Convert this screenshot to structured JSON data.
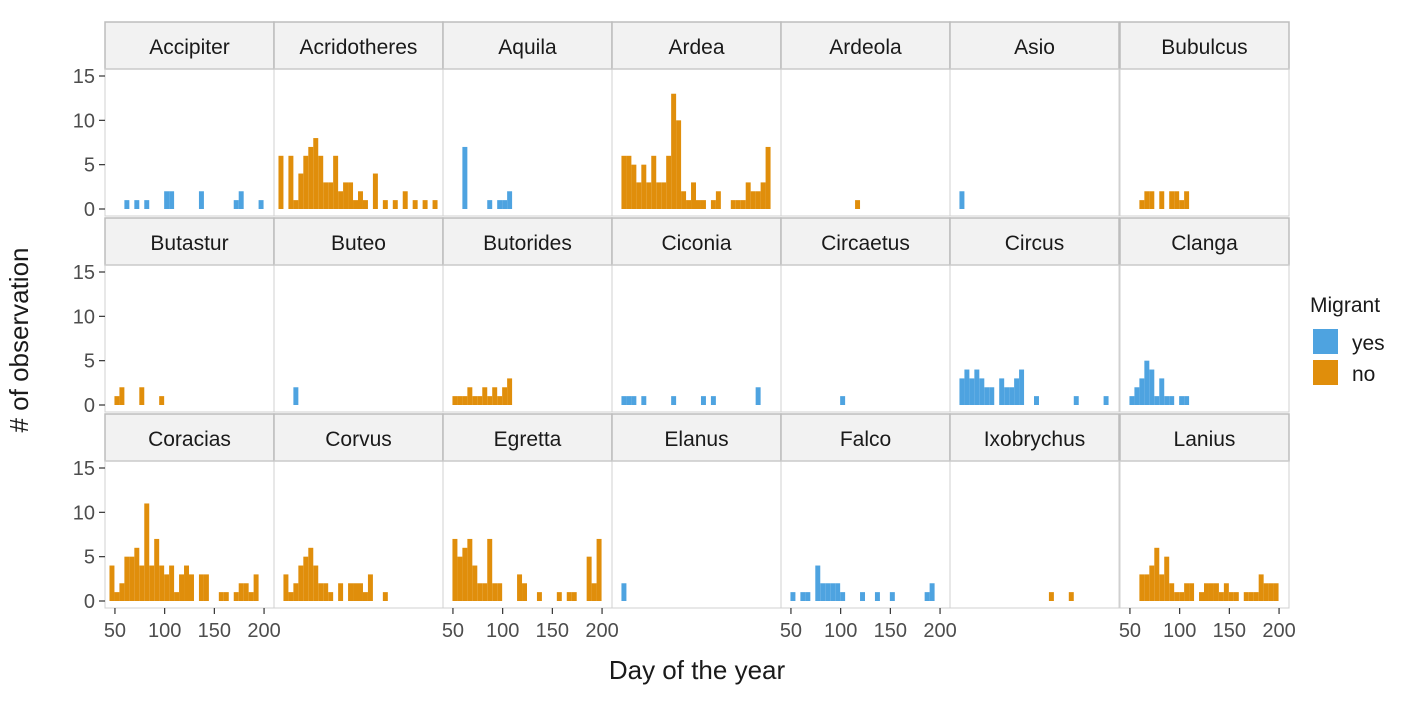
{
  "chart_data": {
    "type": "bar",
    "subtype": "faceted histogram",
    "xlabel": "Day of the year",
    "ylabel": "# of observation",
    "xlim": [
      40,
      210
    ],
    "ylim": [
      0,
      15
    ],
    "x_ticks": [
      50,
      100,
      150,
      200
    ],
    "y_ticks": [
      0,
      5,
      10,
      15
    ],
    "bin_width": 5,
    "grid": false,
    "legend": {
      "title": "Migrant",
      "position": "right",
      "entries": [
        {
          "label": "yes",
          "color": "#4EA3E0"
        },
        {
          "label": "no",
          "color": "#E08E0B"
        }
      ]
    },
    "x_tick_labels_shown_under": [
      "Accipiter",
      "Aquila",
      "Ardeola",
      "Bubulcus"
    ],
    "facets": [
      {
        "name": "Accipiter",
        "migrant": "yes",
        "bins": [
          [
            62,
            1
          ],
          [
            72,
            1
          ],
          [
            82,
            1
          ],
          [
            102,
            2
          ],
          [
            107,
            2
          ],
          [
            137,
            2
          ],
          [
            172,
            1
          ],
          [
            177,
            2
          ],
          [
            197,
            1
          ]
        ]
      },
      {
        "name": "Acridotheres",
        "migrant": "no",
        "bins": [
          [
            47,
            6
          ],
          [
            57,
            6
          ],
          [
            62,
            1
          ],
          [
            67,
            4
          ],
          [
            72,
            6
          ],
          [
            77,
            7
          ],
          [
            82,
            8
          ],
          [
            87,
            6
          ],
          [
            92,
            3
          ],
          [
            97,
            3
          ],
          [
            102,
            6
          ],
          [
            107,
            2
          ],
          [
            112,
            3
          ],
          [
            117,
            3
          ],
          [
            122,
            1
          ],
          [
            127,
            2
          ],
          [
            132,
            1
          ],
          [
            142,
            4
          ],
          [
            152,
            1
          ],
          [
            162,
            1
          ],
          [
            172,
            2
          ],
          [
            182,
            1
          ],
          [
            192,
            1
          ],
          [
            202,
            1
          ]
        ]
      },
      {
        "name": "Aquila",
        "migrant": "yes",
        "bins": [
          [
            62,
            7
          ],
          [
            87,
            1
          ],
          [
            97,
            1
          ],
          [
            102,
            1
          ],
          [
            107,
            2
          ]
        ]
      },
      {
        "name": "Ardea",
        "migrant": "no",
        "bins": [
          [
            52,
            6
          ],
          [
            57,
            6
          ],
          [
            62,
            5
          ],
          [
            67,
            3
          ],
          [
            72,
            5
          ],
          [
            77,
            3
          ],
          [
            82,
            6
          ],
          [
            87,
            3
          ],
          [
            92,
            3
          ],
          [
            97,
            6
          ],
          [
            102,
            13
          ],
          [
            107,
            10
          ],
          [
            112,
            2
          ],
          [
            117,
            1
          ],
          [
            122,
            3
          ],
          [
            127,
            1
          ],
          [
            132,
            1
          ],
          [
            142,
            1
          ],
          [
            147,
            2
          ],
          [
            162,
            1
          ],
          [
            167,
            1
          ],
          [
            172,
            1
          ],
          [
            177,
            3
          ],
          [
            182,
            2
          ],
          [
            187,
            2
          ],
          [
            192,
            3
          ],
          [
            197,
            7
          ]
        ]
      },
      {
        "name": "Ardeola",
        "migrant": "no",
        "bins": [
          [
            117,
            1
          ]
        ]
      },
      {
        "name": "Asio",
        "migrant": "yes",
        "bins": [
          [
            52,
            2
          ]
        ]
      },
      {
        "name": "Bubulcus",
        "migrant": "no",
        "bins": [
          [
            62,
            1
          ],
          [
            67,
            2
          ],
          [
            72,
            2
          ],
          [
            82,
            2
          ],
          [
            92,
            2
          ],
          [
            97,
            2
          ],
          [
            102,
            1
          ],
          [
            107,
            2
          ]
        ]
      },
      {
        "name": "Butastur",
        "migrant": "no",
        "bins": [
          [
            52,
            1
          ],
          [
            57,
            2
          ],
          [
            77,
            2
          ],
          [
            97,
            1
          ]
        ]
      },
      {
        "name": "Buteo",
        "migrant": "yes",
        "bins": [
          [
            62,
            2
          ]
        ]
      },
      {
        "name": "Butorides",
        "migrant": "no",
        "bins": [
          [
            52,
            1
          ],
          [
            57,
            1
          ],
          [
            62,
            1
          ],
          [
            67,
            2
          ],
          [
            72,
            1
          ],
          [
            77,
            1
          ],
          [
            82,
            2
          ],
          [
            87,
            1
          ],
          [
            92,
            2
          ],
          [
            97,
            1
          ],
          [
            102,
            2
          ],
          [
            107,
            3
          ]
        ]
      },
      {
        "name": "Ciconia",
        "migrant": "yes",
        "bins": [
          [
            52,
            1
          ],
          [
            57,
            1
          ],
          [
            62,
            1
          ],
          [
            72,
            1
          ],
          [
            102,
            1
          ],
          [
            132,
            1
          ],
          [
            142,
            1
          ],
          [
            187,
            2
          ]
        ]
      },
      {
        "name": "Circaetus",
        "migrant": "yes",
        "bins": [
          [
            102,
            1
          ]
        ]
      },
      {
        "name": "Circus",
        "migrant": "yes",
        "bins": [
          [
            52,
            3
          ],
          [
            57,
            4
          ],
          [
            62,
            3
          ],
          [
            67,
            4
          ],
          [
            72,
            3
          ],
          [
            77,
            2
          ],
          [
            82,
            2
          ],
          [
            92,
            3
          ],
          [
            97,
            2
          ],
          [
            102,
            2
          ],
          [
            107,
            3
          ],
          [
            112,
            4
          ],
          [
            127,
            1
          ],
          [
            167,
            1
          ],
          [
            197,
            1
          ]
        ]
      },
      {
        "name": "Clanga",
        "migrant": "yes",
        "bins": [
          [
            52,
            1
          ],
          [
            57,
            2
          ],
          [
            62,
            3
          ],
          [
            67,
            5
          ],
          [
            72,
            4
          ],
          [
            77,
            1
          ],
          [
            82,
            3
          ],
          [
            87,
            1
          ],
          [
            92,
            1
          ],
          [
            102,
            1
          ],
          [
            107,
            1
          ]
        ]
      },
      {
        "name": "Coracias",
        "migrant": "no",
        "bins": [
          [
            47,
            4
          ],
          [
            52,
            1
          ],
          [
            57,
            2
          ],
          [
            62,
            5
          ],
          [
            67,
            5
          ],
          [
            72,
            6
          ],
          [
            77,
            4
          ],
          [
            82,
            11
          ],
          [
            87,
            4
          ],
          [
            92,
            7
          ],
          [
            97,
            4
          ],
          [
            102,
            3
          ],
          [
            107,
            4
          ],
          [
            112,
            1
          ],
          [
            117,
            3
          ],
          [
            122,
            4
          ],
          [
            127,
            3
          ],
          [
            137,
            3
          ],
          [
            142,
            3
          ],
          [
            157,
            1
          ],
          [
            162,
            1
          ],
          [
            172,
            1
          ],
          [
            177,
            2
          ],
          [
            182,
            2
          ],
          [
            187,
            1
          ],
          [
            192,
            3
          ]
        ]
      },
      {
        "name": "Corvus",
        "migrant": "no",
        "bins": [
          [
            52,
            3
          ],
          [
            57,
            1
          ],
          [
            62,
            2
          ],
          [
            67,
            4
          ],
          [
            72,
            5
          ],
          [
            77,
            6
          ],
          [
            82,
            4
          ],
          [
            87,
            2
          ],
          [
            92,
            2
          ],
          [
            97,
            1
          ],
          [
            107,
            2
          ],
          [
            117,
            2
          ],
          [
            122,
            2
          ],
          [
            127,
            2
          ],
          [
            132,
            1
          ],
          [
            137,
            3
          ],
          [
            152,
            1
          ]
        ]
      },
      {
        "name": "Egretta",
        "migrant": "no",
        "bins": [
          [
            52,
            7
          ],
          [
            57,
            5
          ],
          [
            62,
            6
          ],
          [
            67,
            7
          ],
          [
            72,
            4
          ],
          [
            77,
            2
          ],
          [
            82,
            2
          ],
          [
            87,
            7
          ],
          [
            92,
            2
          ],
          [
            97,
            2
          ],
          [
            117,
            3
          ],
          [
            122,
            2
          ],
          [
            137,
            1
          ],
          [
            157,
            1
          ],
          [
            167,
            1
          ],
          [
            172,
            1
          ],
          [
            187,
            5
          ],
          [
            192,
            2
          ],
          [
            197,
            7
          ]
        ]
      },
      {
        "name": "Elanus",
        "migrant": "yes",
        "bins": [
          [
            52,
            2
          ]
        ]
      },
      {
        "name": "Falco",
        "migrant": "yes",
        "bins": [
          [
            52,
            1
          ],
          [
            62,
            1
          ],
          [
            67,
            1
          ],
          [
            77,
            4
          ],
          [
            82,
            2
          ],
          [
            87,
            2
          ],
          [
            92,
            2
          ],
          [
            97,
            2
          ],
          [
            102,
            1
          ],
          [
            122,
            1
          ],
          [
            137,
            1
          ],
          [
            152,
            1
          ],
          [
            187,
            1
          ],
          [
            192,
            2
          ]
        ]
      },
      {
        "name": "Ixobrychus",
        "migrant": "no",
        "bins": [
          [
            142,
            1
          ],
          [
            162,
            1
          ]
        ]
      },
      {
        "name": "Lanius",
        "migrant": "no",
        "bins": [
          [
            62,
            3
          ],
          [
            67,
            3
          ],
          [
            72,
            4
          ],
          [
            77,
            6
          ],
          [
            82,
            3
          ],
          [
            87,
            5
          ],
          [
            92,
            2
          ],
          [
            97,
            1
          ],
          [
            102,
            1
          ],
          [
            107,
            2
          ],
          [
            112,
            2
          ],
          [
            122,
            1
          ],
          [
            127,
            2
          ],
          [
            132,
            2
          ],
          [
            137,
            2
          ],
          [
            142,
            1
          ],
          [
            147,
            2
          ],
          [
            152,
            1
          ],
          [
            157,
            1
          ],
          [
            167,
            1
          ],
          [
            172,
            1
          ],
          [
            177,
            1
          ],
          [
            182,
            3
          ],
          [
            187,
            2
          ],
          [
            192,
            2
          ],
          [
            197,
            2
          ]
        ]
      }
    ]
  }
}
